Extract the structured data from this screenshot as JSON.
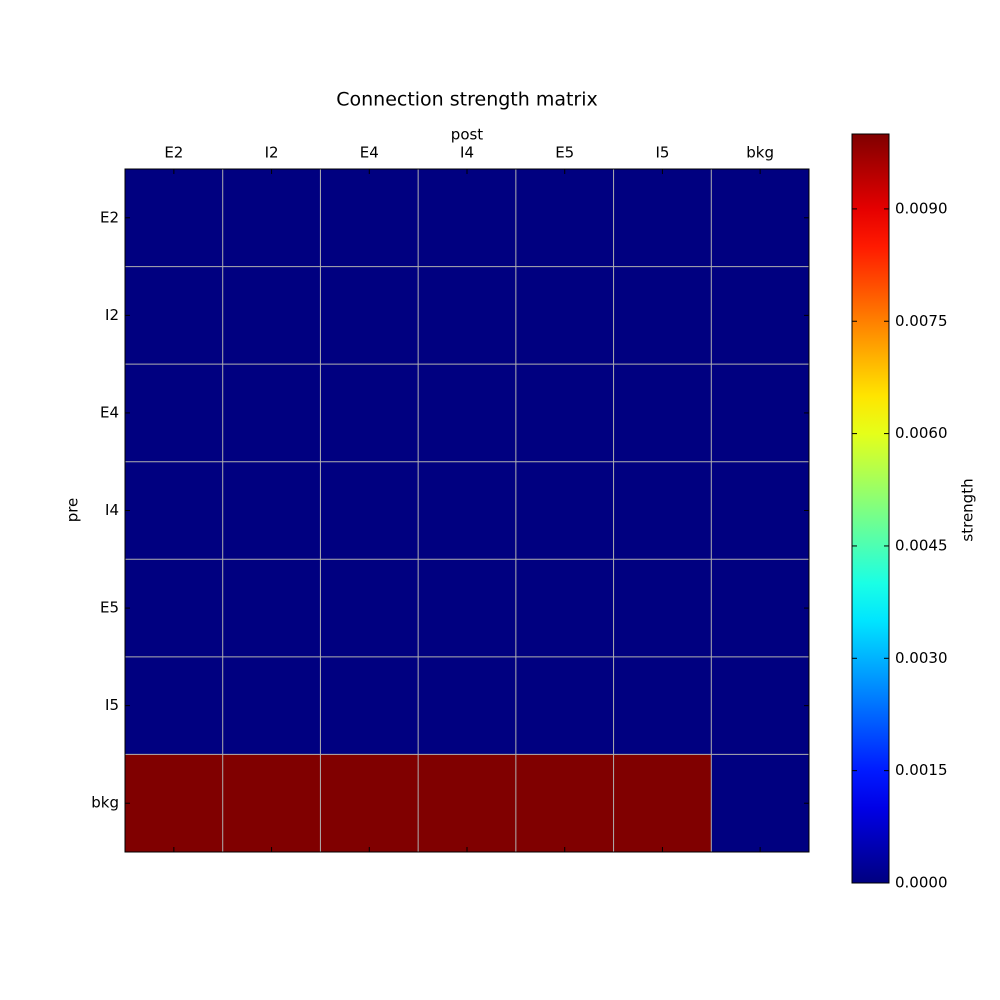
{
  "chart_data": {
    "type": "heatmap",
    "title": "Connection strength matrix",
    "x_label": "post",
    "y_label": "pre",
    "x_categories": [
      "E2",
      "I2",
      "E4",
      "I4",
      "E5",
      "I5",
      "bkg"
    ],
    "y_categories": [
      "E2",
      "I2",
      "E4",
      "I4",
      "E5",
      "I5",
      "bkg"
    ],
    "values": [
      [
        0,
        0,
        0,
        0,
        0,
        0,
        0
      ],
      [
        0,
        0,
        0,
        0,
        0,
        0,
        0
      ],
      [
        0,
        0,
        0,
        0,
        0,
        0,
        0
      ],
      [
        0,
        0,
        0,
        0,
        0,
        0,
        0
      ],
      [
        0,
        0,
        0,
        0,
        0,
        0,
        0
      ],
      [
        0,
        0,
        0,
        0,
        0,
        0,
        0
      ],
      [
        0.01,
        0.01,
        0.01,
        0.01,
        0.01,
        0.01,
        0
      ]
    ],
    "colormap": "jet",
    "grid": true,
    "colorbar": {
      "label": "strength",
      "lim": [
        0,
        0.01
      ],
      "ticks": [
        {
          "value": 0,
          "label": "0.0000"
        },
        {
          "value": 0.0015,
          "label": "0.0015"
        },
        {
          "value": 0.003,
          "label": "0.0030"
        },
        {
          "value": 0.0045,
          "label": "0.0045"
        },
        {
          "value": 0.006,
          "label": "0.0060"
        },
        {
          "value": 0.0075,
          "label": "0.0075"
        },
        {
          "value": 0.009,
          "label": "0.0090"
        }
      ]
    }
  }
}
